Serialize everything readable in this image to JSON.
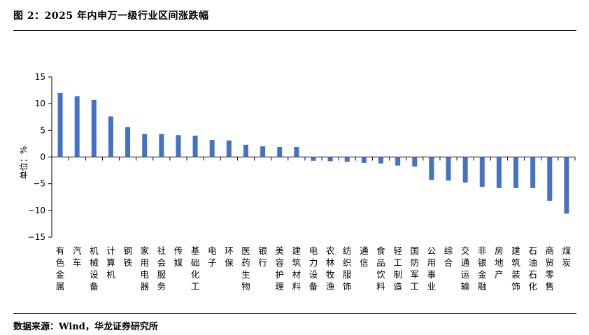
{
  "figure": {
    "title": "图 2：2025 年内申万一级行业区间涨跌幅",
    "source": "数据来源：Wind，华龙证券研究所"
  },
  "chart_data": {
    "type": "bar",
    "title": "图 2：2025 年内申万一级行业区间涨跌幅",
    "xlabel": "",
    "ylabel": "单位：%",
    "ylim": [
      -15,
      15
    ],
    "yticks": [
      15,
      10,
      5,
      0,
      -5,
      -10,
      -15
    ],
    "yticklabels": [
      "15",
      "10",
      "5",
      "0",
      "−5",
      "−10",
      "−15"
    ],
    "grid": false,
    "bar_color": "#4472C4",
    "categories": [
      "有色金属",
      "汽车",
      "机械设备",
      "计算机",
      "钢铁",
      "家用电器",
      "社会服务",
      "传媒",
      "基础化工",
      "电子",
      "环保",
      "医药生物",
      "银行",
      "美容护理",
      "建筑材料",
      "电力设备",
      "农林牧渔",
      "纺织服饰",
      "通信",
      "食品饮料",
      "轻工制造",
      "国防军工",
      "公用事业",
      "综合",
      "交通运输",
      "非银金融",
      "房地产",
      "建筑装饰",
      "石油石化",
      "商贸零售",
      "煤炭"
    ],
    "values": [
      12.0,
      11.4,
      10.7,
      7.6,
      5.6,
      4.3,
      4.3,
      4.1,
      4.0,
      3.2,
      3.1,
      2.3,
      2.0,
      1.9,
      1.9,
      -0.7,
      -0.8,
      -0.9,
      -1.1,
      -1.2,
      -1.6,
      -1.8,
      -4.3,
      -4.4,
      -4.8,
      -5.6,
      -5.8,
      -5.8,
      -5.8,
      -8.2,
      -10.6
    ]
  }
}
